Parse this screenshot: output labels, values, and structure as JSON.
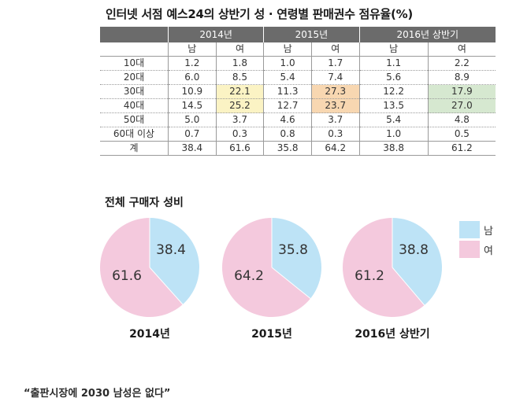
{
  "title": "인터넷 서점 예스24의 상반기 성 · 연령별 판매권수 점유율(%)",
  "colors": {
    "male": "#bde3f6",
    "female": "#f4c9dd",
    "header": "#6b6b6b",
    "hl_2014": "#fbf3c4",
    "hl_2015": "#f8d7b1",
    "hl_2016": "#d6e8d0"
  },
  "table": {
    "years": [
      "2014년",
      "2015년",
      "2016년 상반기"
    ],
    "sub": [
      "남",
      "여",
      "남",
      "여",
      "남",
      "여"
    ],
    "rows": [
      {
        "label": "10대",
        "values": [
          "1.2",
          "1.8",
          "1.0",
          "1.7",
          "1.1",
          "2.2"
        ]
      },
      {
        "label": "20대",
        "values": [
          "6.0",
          "8.5",
          "5.4",
          "7.4",
          "5.6",
          "8.9"
        ]
      },
      {
        "label": "30대",
        "values": [
          "10.9",
          "22.1",
          "11.3",
          "27.3",
          "12.2",
          "17.9"
        ]
      },
      {
        "label": "40대",
        "values": [
          "14.5",
          "25.2",
          "12.7",
          "23.7",
          "13.5",
          "27.0"
        ]
      },
      {
        "label": "50대",
        "values": [
          "5.0",
          "3.7",
          "4.6",
          "3.7",
          "5.4",
          "4.8"
        ]
      },
      {
        "label": "60대 이상",
        "values": [
          "0.7",
          "0.3",
          "0.8",
          "0.3",
          "1.0",
          "0.5"
        ]
      },
      {
        "label": "계",
        "values": [
          "38.4",
          "61.6",
          "35.8",
          "64.2",
          "38.8",
          "61.2"
        ]
      }
    ]
  },
  "pie_section_title": "전체 구매자 성비",
  "legend": [
    {
      "name": "남",
      "color": "#bde3f6"
    },
    {
      "name": "여",
      "color": "#f4c9dd"
    }
  ],
  "chart_data": [
    {
      "type": "pie",
      "title": "2014년",
      "slices": [
        {
          "name": "남",
          "value": 38.4
        },
        {
          "name": "여",
          "value": 61.6
        }
      ]
    },
    {
      "type": "pie",
      "title": "2015년",
      "slices": [
        {
          "name": "남",
          "value": 35.8
        },
        {
          "name": "여",
          "value": 64.2
        }
      ]
    },
    {
      "type": "pie",
      "title": "2016년 상반기",
      "slices": [
        {
          "name": "남",
          "value": 38.8
        },
        {
          "name": "여",
          "value": 61.2
        }
      ]
    }
  ],
  "quote": "“출판시장에 2030 남성은 없다”"
}
